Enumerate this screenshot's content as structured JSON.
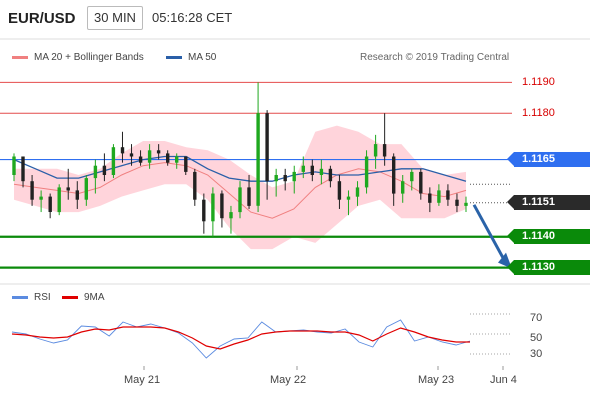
{
  "header": {
    "symbol": "EUR/USD",
    "timeframe": "30 MIN",
    "time": "05:16:28 CET"
  },
  "legend": {
    "ma_bands": "MA 20 + Bollinger Bands",
    "ma50": "MA 50",
    "credit": "Research © 2019 Trading Central"
  },
  "colors": {
    "up": "#1fa81f",
    "down": "#222222",
    "ma20": "#f08080",
    "band_fill": "#ffc6cf",
    "ma50": "#2a5fa8",
    "resistance": "#d80000",
    "pivot": "#2f6ff0",
    "support": "#0a8a0a",
    "last_price": "#2a2a2a",
    "rsi": "#5b8be0",
    "rsi_ma": "#e00000",
    "arrow": "#2a63a8"
  },
  "price_levels": [
    {
      "label": "1.1190",
      "value": 1.119,
      "kind": "resistance"
    },
    {
      "label": "1.1180",
      "value": 1.118,
      "kind": "resistance"
    },
    {
      "label": "1.1165",
      "value": 1.1165,
      "kind": "pivot"
    },
    {
      "label": "1.1151",
      "value": 1.1151,
      "kind": "last"
    },
    {
      "label": "1.1140",
      "value": 1.114,
      "kind": "support"
    },
    {
      "label": "1.1130",
      "value": 1.113,
      "kind": "support"
    }
  ],
  "rsi_panel": {
    "legend_rsi": "RSI",
    "legend_ma": "9MA",
    "ticks": [
      "70",
      "50",
      "30"
    ],
    "tick_values": [
      70,
      50,
      30
    ]
  },
  "x_axis": {
    "labels": [
      "May 21",
      "May 22",
      "May 23",
      "Jun 4"
    ]
  },
  "chart_data": {
    "type": "candlestick",
    "symbol": "EUR/USD",
    "timeframe": "30 MIN",
    "ylim": [
      1.1126,
      1.1194
    ],
    "x_labels": [
      "May 21",
      "May 22",
      "May 23",
      "Jun 4"
    ],
    "horizontal_levels": [
      1.119,
      1.118,
      1.1165,
      1.1151,
      1.114,
      1.113
    ],
    "last_price": 1.1151,
    "projection": {
      "from": 1.1151,
      "to": 1.113
    },
    "series": [
      {
        "name": "MA 20 + Bollinger Bands",
        "values": [
          1.1157,
          1.1156,
          1.1155,
          1.1154,
          1.1156,
          1.116,
          1.1163,
          1.1164,
          1.1163,
          1.116,
          1.1154,
          1.1148,
          1.1146,
          1.1149,
          1.1156,
          1.116,
          1.1162,
          1.1161,
          1.1158,
          1.1154,
          1.1153,
          1.1155
        ]
      },
      {
        "name": "MA 50",
        "values": [
          1.1165,
          1.1162,
          1.1159,
          1.1159,
          1.1161,
          1.1163,
          1.1165,
          1.1166,
          1.1166,
          1.1162,
          1.1159,
          1.1158,
          1.1158,
          1.116,
          1.1161,
          1.116,
          1.116,
          1.1161,
          1.1162,
          1.1162,
          1.116,
          1.1158
        ]
      }
    ],
    "ohlc": [
      [
        1.116,
        1.1167,
        1.1158,
        1.1166
      ],
      [
        1.1166,
        1.1166,
        1.1156,
        1.1158
      ],
      [
        1.1158,
        1.116,
        1.115,
        1.1152
      ],
      [
        1.1152,
        1.1155,
        1.1148,
        1.1153
      ],
      [
        1.1153,
        1.1154,
        1.1146,
        1.1148
      ],
      [
        1.1148,
        1.1157,
        1.1147,
        1.1156
      ],
      [
        1.1156,
        1.1162,
        1.1152,
        1.1155
      ],
      [
        1.1155,
        1.1158,
        1.1149,
        1.1152
      ],
      [
        1.1152,
        1.116,
        1.115,
        1.1159
      ],
      [
        1.1159,
        1.1165,
        1.1154,
        1.1163
      ],
      [
        1.1163,
        1.1167,
        1.1158,
        1.116
      ],
      [
        1.116,
        1.117,
        1.1159,
        1.1169
      ],
      [
        1.1169,
        1.1174,
        1.1164,
        1.1167
      ],
      [
        1.1167,
        1.117,
        1.1163,
        1.1166
      ],
      [
        1.1166,
        1.1168,
        1.1163,
        1.1164
      ],
      [
        1.1164,
        1.117,
        1.1162,
        1.1168
      ],
      [
        1.1168,
        1.117,
        1.1165,
        1.1167
      ],
      [
        1.1167,
        1.1168,
        1.1163,
        1.1164
      ],
      [
        1.1164,
        1.1167,
        1.1162,
        1.1166
      ],
      [
        1.1166,
        1.1166,
        1.116,
        1.1161
      ],
      [
        1.1161,
        1.1162,
        1.115,
        1.1152
      ],
      [
        1.1152,
        1.1154,
        1.1141,
        1.1145
      ],
      [
        1.1145,
        1.1156,
        1.114,
        1.1154
      ],
      [
        1.1154,
        1.1155,
        1.1143,
        1.1146
      ],
      [
        1.1146,
        1.115,
        1.1141,
        1.1148
      ],
      [
        1.1148,
        1.1158,
        1.1146,
        1.1156
      ],
      [
        1.1156,
        1.116,
        1.1149,
        1.115
      ],
      [
        1.115,
        1.119,
        1.1148,
        1.118
      ],
      [
        1.118,
        1.1181,
        1.1152,
        1.1158
      ],
      [
        1.1158,
        1.1162,
        1.1153,
        1.116
      ],
      [
        1.116,
        1.1162,
        1.1155,
        1.1158
      ],
      [
        1.1158,
        1.1163,
        1.1154,
        1.1161
      ],
      [
        1.1161,
        1.1166,
        1.1159,
        1.1163
      ],
      [
        1.1163,
        1.1165,
        1.1158,
        1.116
      ],
      [
        1.116,
        1.1165,
        1.1157,
        1.1162
      ],
      [
        1.1162,
        1.1163,
        1.1156,
        1.1158
      ],
      [
        1.1158,
        1.116,
        1.1149,
        1.1152
      ],
      [
        1.1152,
        1.1155,
        1.1147,
        1.1153
      ],
      [
        1.1153,
        1.1158,
        1.115,
        1.1156
      ],
      [
        1.1156,
        1.1168,
        1.1154,
        1.1166
      ],
      [
        1.1166,
        1.1173,
        1.1162,
        1.117
      ],
      [
        1.117,
        1.118,
        1.1163,
        1.1166
      ],
      [
        1.1166,
        1.1167,
        1.115,
        1.1154
      ],
      [
        1.1154,
        1.116,
        1.1151,
        1.1158
      ],
      [
        1.1158,
        1.1162,
        1.1155,
        1.1161
      ],
      [
        1.1161,
        1.1162,
        1.1152,
        1.1154
      ],
      [
        1.1154,
        1.1156,
        1.1148,
        1.1151
      ],
      [
        1.1151,
        1.1157,
        1.115,
        1.1155
      ],
      [
        1.1155,
        1.1157,
        1.115,
        1.1152
      ],
      [
        1.1152,
        1.1154,
        1.1148,
        1.115
      ],
      [
        1.115,
        1.1153,
        1.1148,
        1.1151
      ]
    ],
    "rsi": {
      "ylim": [
        20,
        80
      ],
      "ticks": [
        70,
        50,
        30
      ],
      "values": [
        52,
        50,
        45,
        41,
        44,
        58,
        57,
        48,
        62,
        57,
        60,
        56,
        51,
        41,
        26,
        38,
        45,
        46,
        62,
        52,
        53,
        54,
        52,
        51,
        55,
        42,
        37,
        57,
        64,
        43,
        47,
        42,
        39,
        43
      ]
    },
    "rsi_9ma": {
      "values": [
        50,
        49,
        47,
        46,
        47,
        52,
        55,
        54,
        57,
        57,
        57,
        56,
        52,
        46,
        38,
        35,
        40,
        44,
        50,
        52,
        53,
        53,
        53,
        52,
        52,
        49,
        43,
        50,
        56,
        52,
        47,
        44,
        42,
        42
      ]
    }
  }
}
